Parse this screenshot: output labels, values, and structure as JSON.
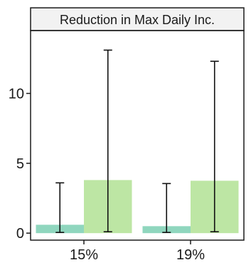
{
  "chart_data": {
    "type": "bar",
    "title": "Reduction in Max Daily Inc.",
    "xlabel": "",
    "ylabel": "",
    "categories": [
      "15%",
      "19%"
    ],
    "ylim": [
      -0.5,
      14.5
    ],
    "yticks": [
      0,
      5,
      10
    ],
    "grid": false,
    "legend": "none",
    "series": [
      {
        "color": "#8fd6be",
        "values": [
          0.6,
          0.5
        ],
        "error_low": [
          0.05,
          0.05
        ],
        "error_high": [
          3.6,
          3.55
        ]
      },
      {
        "color": "#bde6a4",
        "values": [
          3.8,
          3.75
        ],
        "error_low": [
          0.1,
          0.1
        ],
        "error_high": [
          13.1,
          12.3
        ]
      }
    ]
  },
  "colors": {
    "panel_border": "#1a1a1a",
    "strip_fill": "#f2f2f2",
    "errorbar": "#111111"
  }
}
